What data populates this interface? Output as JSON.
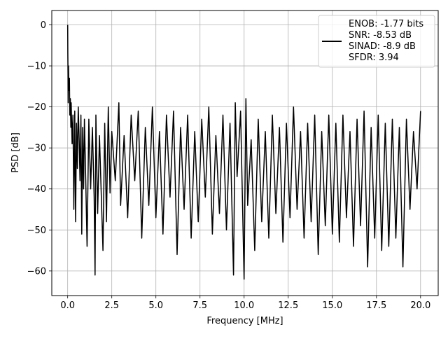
{
  "chart_data": {
    "type": "line",
    "title": "",
    "xlabel": "Frequency [MHz]",
    "ylabel": "PSD [dB]",
    "xlim": [
      -0.9,
      21.0
    ],
    "ylim": [
      -66,
      3.5
    ],
    "x_ticks": [
      0.0,
      2.5,
      5.0,
      7.5,
      10.0,
      12.5,
      15.0,
      17.5,
      20.0
    ],
    "x_tick_labels": [
      "0.0",
      "2.5",
      "5.0",
      "7.5",
      "10.0",
      "12.5",
      "15.0",
      "17.5",
      "20.0"
    ],
    "y_ticks": [
      0,
      -10,
      -20,
      -30,
      -40,
      -50,
      -60
    ],
    "y_tick_labels": [
      "0",
      "−10",
      "−20",
      "−30",
      "−40",
      "−50",
      "−60"
    ],
    "grid": true,
    "legend_position": "top-right",
    "legend_lines": [
      "ENOB: -1.77 bits",
      "SNR: -8.53 dB",
      "SINAD: -8.9 dB",
      "SFDR: 3.94"
    ],
    "series_color": "#000000",
    "series": [
      {
        "x": [
          0.0,
          0.01,
          0.02,
          0.03,
          0.05,
          0.07,
          0.1,
          0.12,
          0.15,
          0.18,
          0.2,
          0.25,
          0.3,
          0.35,
          0.4,
          0.45,
          0.5,
          0.55,
          0.6,
          0.65,
          0.7,
          0.75,
          0.8,
          0.85,
          0.9,
          0.95,
          1.0,
          1.1,
          1.2,
          1.3,
          1.4,
          1.5,
          1.55,
          1.6,
          1.7,
          1.8,
          2.0,
          2.1,
          2.2,
          2.3,
          2.4,
          2.5,
          2.7,
          2.9,
          3.0,
          3.2,
          3.4,
          3.6,
          3.8,
          4.0,
          4.2,
          4.4,
          4.6,
          4.8,
          5.0,
          5.2,
          5.4,
          5.6,
          5.8,
          6.0,
          6.2,
          6.4,
          6.6,
          6.8,
          7.0,
          7.2,
          7.4,
          7.6,
          7.8,
          8.0,
          8.2,
          8.4,
          8.6,
          8.8,
          9.0,
          9.2,
          9.4,
          9.5,
          9.6,
          9.8,
          10.0,
          10.1,
          10.2,
          10.4,
          10.6,
          10.8,
          11.0,
          11.2,
          11.4,
          11.6,
          11.8,
          12.0,
          12.2,
          12.4,
          12.6,
          12.8,
          13.0,
          13.2,
          13.4,
          13.6,
          13.8,
          14.0,
          14.2,
          14.4,
          14.6,
          14.8,
          15.0,
          15.2,
          15.4,
          15.6,
          15.8,
          16.0,
          16.2,
          16.4,
          16.6,
          16.8,
          17.0,
          17.2,
          17.4,
          17.6,
          17.8,
          18.0,
          18.2,
          18.4,
          18.6,
          18.8,
          19.0,
          19.2,
          19.4,
          19.6,
          19.8,
          20.0
        ],
        "y": [
          0,
          -7,
          -12,
          -19,
          -10,
          -16,
          -13,
          -22,
          -18,
          -25,
          -19,
          -29,
          -22,
          -45,
          -21,
          -48,
          -24,
          -35,
          -20,
          -28,
          -38,
          -22,
          -51,
          -25,
          -40,
          -23,
          -33,
          -54,
          -23,
          -40,
          -25,
          -42,
          -61,
          -22,
          -46,
          -27,
          -55,
          -24,
          -48,
          -20,
          -41,
          -26,
          -38,
          -19,
          -44,
          -27,
          -47,
          -22,
          -38,
          -21,
          -52,
          -25,
          -44,
          -20,
          -47,
          -26,
          -51,
          -22,
          -42,
          -21,
          -56,
          -25,
          -45,
          -22,
          -52,
          -26,
          -48,
          -23,
          -42,
          -20,
          -51,
          -27,
          -46,
          -22,
          -50,
          -24,
          -61,
          -19,
          -37,
          -21,
          -62,
          -18,
          -44,
          -28,
          -55,
          -23,
          -48,
          -26,
          -52,
          -22,
          -46,
          -25,
          -53,
          -24,
          -47,
          -20,
          -45,
          -26,
          -52,
          -24,
          -48,
          -22,
          -56,
          -26,
          -49,
          -22,
          -51,
          -24,
          -53,
          -22,
          -47,
          -26,
          -54,
          -23,
          -49,
          -21,
          -59,
          -25,
          -52,
          -22,
          -55,
          -24,
          -54,
          -23,
          -52,
          -25,
          -59,
          -23,
          -45,
          -26,
          -40,
          -21
        ]
      }
    ]
  }
}
